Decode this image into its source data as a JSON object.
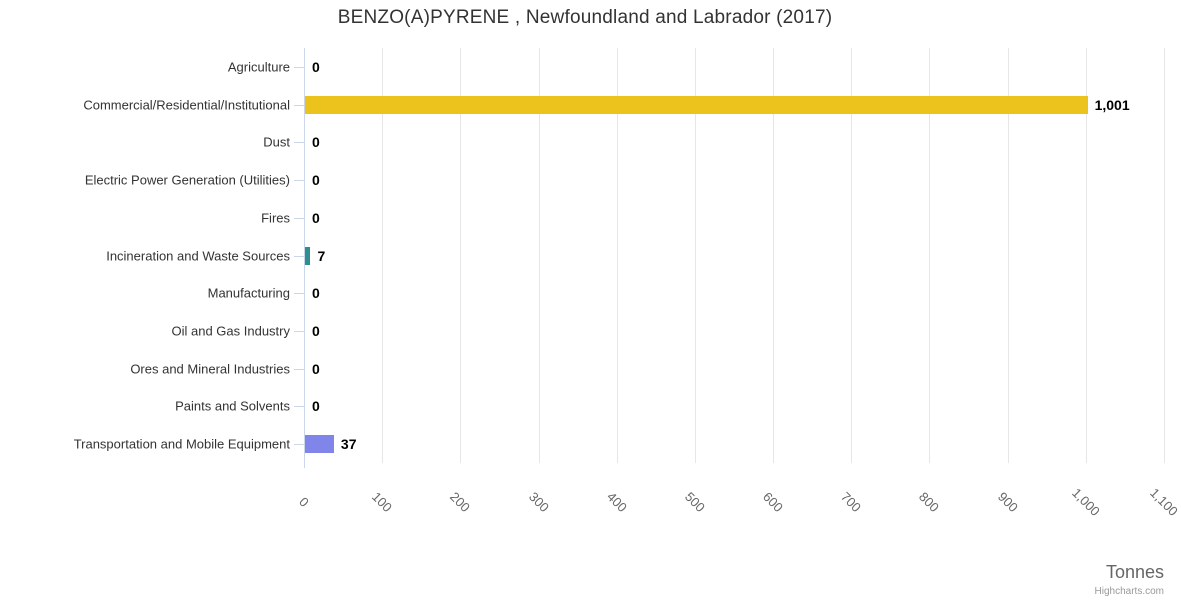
{
  "credits": "Highcharts.com",
  "theme": {
    "background": "#ffffff",
    "title_color": "#333333",
    "category_label_color": "#333333",
    "data_label_color": "#000000",
    "tick_label_color": "#666666",
    "axis_title_color": "#666666",
    "credits_color": "#999999",
    "grid_color": "#e6e6e6",
    "axis_line_color": "#ccd6eb"
  },
  "chart_data": {
    "type": "bar",
    "orientation": "horizontal",
    "title": "BENZO(A)PYRENE , Newfoundland and Labrador (2017)",
    "xlabel": "Tonnes",
    "ylabel": "",
    "xlim": [
      0,
      1100
    ],
    "grid": true,
    "legend": false,
    "categories": [
      "Agriculture",
      "Commercial/Residential/Institutional",
      "Dust",
      "Electric Power Generation (Utilities)",
      "Fires",
      "Incineration and Waste Sources",
      "Manufacturing",
      "Oil and Gas Industry",
      "Ores and Mineral Industries",
      "Paints and Solvents",
      "Transportation and Mobile Equipment"
    ],
    "values": [
      0,
      1001,
      0,
      0,
      0,
      7,
      0,
      0,
      0,
      0,
      37
    ],
    "value_labels": [
      "0",
      "1,001",
      "0",
      "0",
      "0",
      "7",
      "0",
      "0",
      "0",
      "0",
      "37"
    ],
    "bar_colors": [
      null,
      "#ECC31C",
      null,
      null,
      null,
      "#2B908F",
      null,
      null,
      null,
      null,
      "#8085E9"
    ],
    "x_ticks": {
      "values": [
        0,
        100,
        200,
        300,
        400,
        500,
        600,
        700,
        800,
        900,
        1000,
        1100
      ],
      "labels": [
        "0",
        "100",
        "200",
        "300",
        "400",
        "500",
        "600",
        "700",
        "800",
        "900",
        "1,000",
        "1,100"
      ],
      "rotation": 45
    }
  }
}
